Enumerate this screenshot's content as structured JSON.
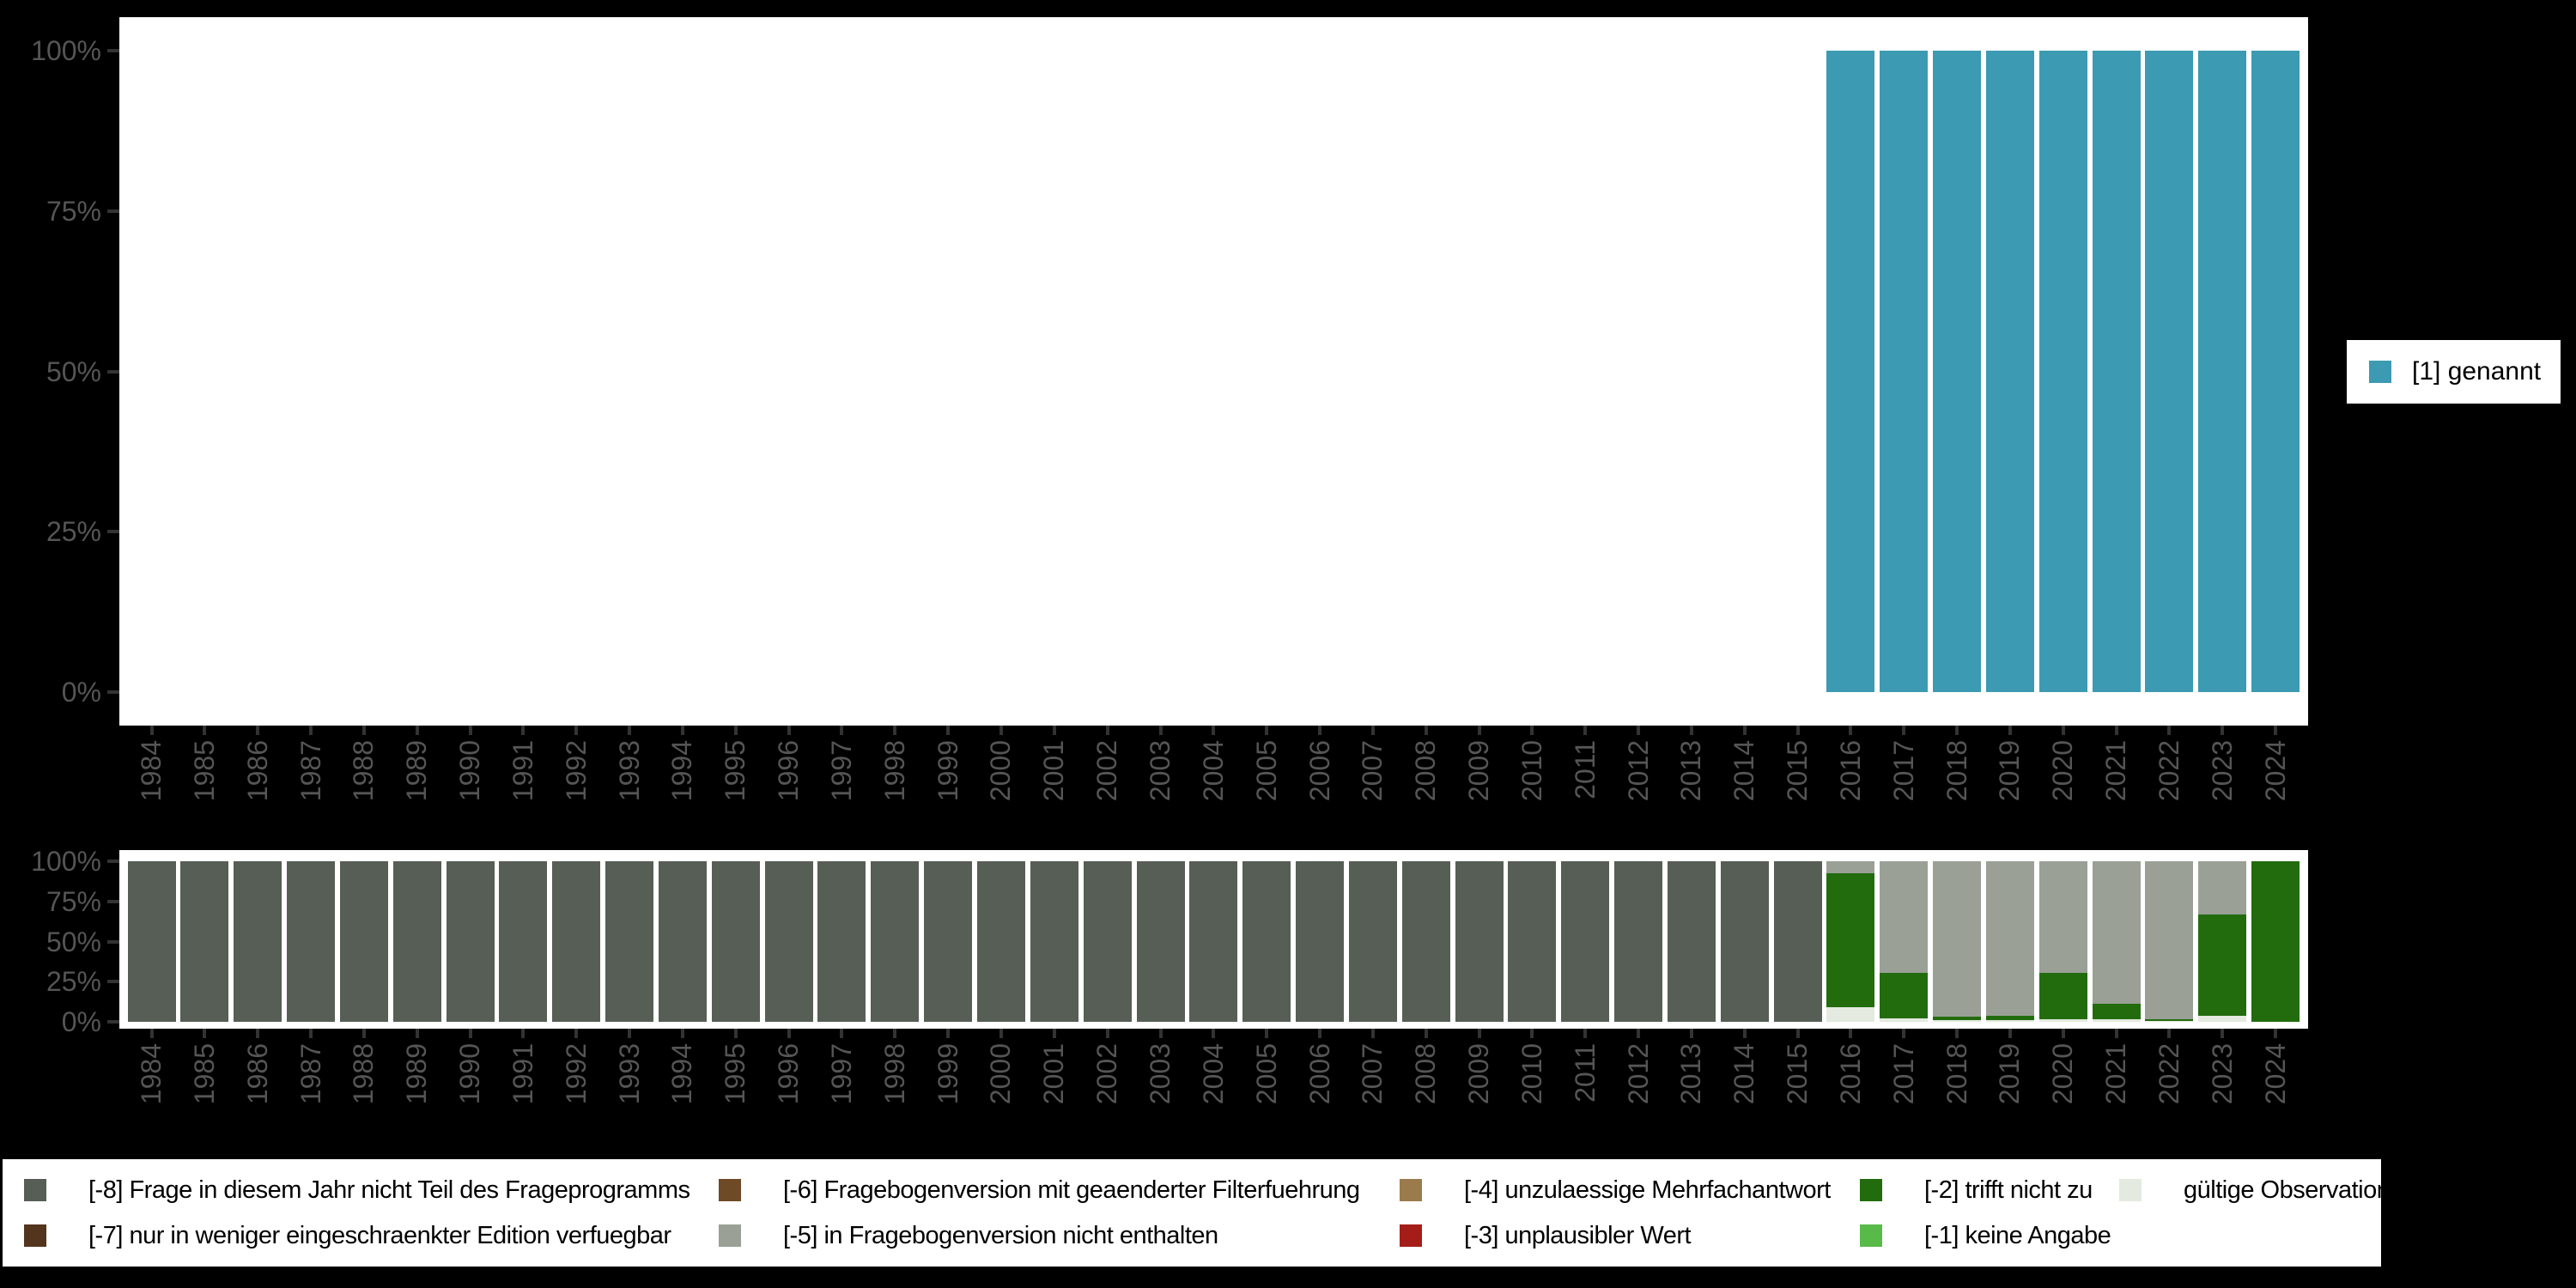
{
  "colors": {
    "page_bg": "#000000",
    "plot_bg": "#ffffff",
    "axis_text": "#555555",
    "axis_tick": "#333333",
    "legend_text": "#000000",
    "genannt": "#3c9ab2",
    "m1": "#58bb49",
    "m2": "#226c0e",
    "m3": "#a51d19",
    "m4": "#9b7b4c",
    "m5": "#9aa096",
    "m6": "#6e4a26",
    "m7": "#53341d",
    "m8": "#565e56",
    "valid": "#e4eadf"
  },
  "legend_right": {
    "label": "[1] genannt",
    "color_key": "genannt"
  },
  "legend_bottom": {
    "items": [
      {
        "key": "m8",
        "label": "[-8] Frage in diesem Jahr nicht Teil des Frageprogramms",
        "col": 0,
        "row": 0
      },
      {
        "key": "m7",
        "label": "[-7] nur in weniger eingeschraenkter Edition verfuegbar",
        "col": 0,
        "row": 1
      },
      {
        "key": "m6",
        "label": "[-6] Fragebogenversion mit geaenderter Filterfuehrung",
        "col": 1,
        "row": 0
      },
      {
        "key": "m5",
        "label": "[-5] in Fragebogenversion nicht enthalten",
        "col": 1,
        "row": 1
      },
      {
        "key": "m4",
        "label": "[-4] unzulaessige Mehrfachantwort",
        "col": 2,
        "row": 0
      },
      {
        "key": "m3",
        "label": "[-3] unplausibler Wert",
        "col": 2,
        "row": 1
      },
      {
        "key": "m2",
        "label": "[-2] trifft nicht zu",
        "col": 3,
        "row": 0
      },
      {
        "key": "m1",
        "label": "[-1] keine Angabe",
        "col": 3,
        "row": 1
      },
      {
        "key": "valid",
        "label": "gültige Observationen",
        "col": 4,
        "row": 0
      }
    ]
  },
  "chart_data": [
    {
      "id": "top",
      "type": "bar",
      "stacked": true,
      "title": "",
      "xlabel": "",
      "ylabel": "",
      "ylim": [
        0,
        100
      ],
      "yticks": [
        "0%",
        "25%",
        "50%",
        "75%",
        "100%"
      ],
      "legend_position": "right",
      "grid": false,
      "categories": [
        "1984",
        "1985",
        "1986",
        "1987",
        "1988",
        "1989",
        "1990",
        "1991",
        "1992",
        "1993",
        "1994",
        "1995",
        "1996",
        "1997",
        "1998",
        "1999",
        "2000",
        "2001",
        "2002",
        "2003",
        "2004",
        "2005",
        "2006",
        "2007",
        "2008",
        "2009",
        "2010",
        "2011",
        "2012",
        "2013",
        "2014",
        "2015",
        "2016",
        "2017",
        "2018",
        "2019",
        "2020",
        "2021",
        "2022",
        "2023",
        "2024"
      ],
      "series_note": "percent of valid answers; [1] genannt only",
      "bars": {
        "2016": {
          "genannt": 100
        },
        "2017": {
          "genannt": 100
        },
        "2018": {
          "genannt": 100
        },
        "2019": {
          "genannt": 100
        },
        "2020": {
          "genannt": 100
        },
        "2021": {
          "genannt": 100
        },
        "2022": {
          "genannt": 100
        },
        "2023": {
          "genannt": 100
        },
        "2024": {
          "genannt": 100
        }
      }
    },
    {
      "id": "bottom",
      "type": "bar",
      "stacked": true,
      "title": "",
      "xlabel": "",
      "ylabel": "",
      "ylim": [
        0,
        100
      ],
      "yticks": [
        "0%",
        "25%",
        "50%",
        "75%",
        "100%"
      ],
      "legend_position": "bottom",
      "grid": false,
      "categories": [
        "1984",
        "1985",
        "1986",
        "1987",
        "1988",
        "1989",
        "1990",
        "1991",
        "1992",
        "1993",
        "1994",
        "1995",
        "1996",
        "1997",
        "1998",
        "1999",
        "2000",
        "2001",
        "2002",
        "2003",
        "2004",
        "2005",
        "2006",
        "2007",
        "2008",
        "2009",
        "2010",
        "2011",
        "2012",
        "2013",
        "2014",
        "2015",
        "2016",
        "2017",
        "2018",
        "2019",
        "2020",
        "2021",
        "2022",
        "2023",
        "2024"
      ],
      "series_note": "segments listed top-to-bottom of each stacked bar, values in percent",
      "bars": {
        "1984": {
          "m8": 100
        },
        "1985": {
          "m8": 100
        },
        "1986": {
          "m8": 100
        },
        "1987": {
          "m8": 100
        },
        "1988": {
          "m8": 100
        },
        "1989": {
          "m8": 100
        },
        "1990": {
          "m8": 100
        },
        "1991": {
          "m8": 100
        },
        "1992": {
          "m8": 100
        },
        "1993": {
          "m8": 100
        },
        "1994": {
          "m8": 100
        },
        "1995": {
          "m8": 100
        },
        "1996": {
          "m8": 100
        },
        "1997": {
          "m8": 100
        },
        "1998": {
          "m8": 100
        },
        "1999": {
          "m8": 100
        },
        "2000": {
          "m8": 100
        },
        "2001": {
          "m8": 100
        },
        "2002": {
          "m8": 100
        },
        "2003": {
          "m8": 100
        },
        "2004": {
          "m8": 100
        },
        "2005": {
          "m8": 100
        },
        "2006": {
          "m8": 100
        },
        "2007": {
          "m8": 100
        },
        "2008": {
          "m8": 100
        },
        "2009": {
          "m8": 100
        },
        "2010": {
          "m8": 100
        },
        "2011": {
          "m8": 100
        },
        "2012": {
          "m8": 100
        },
        "2013": {
          "m8": 100
        },
        "2014": {
          "m8": 100
        },
        "2015": {
          "m8": 100
        },
        "2016": {
          "m5": 7.5,
          "m2": 83.5,
          "valid": 9
        },
        "2017": {
          "m5": 69.5,
          "m2": 28.5,
          "valid": 2
        },
        "2018": {
          "m5": 97,
          "m2": 2,
          "valid": 1
        },
        "2019": {
          "m5": 96,
          "m2": 3,
          "valid": 1
        },
        "2020": {
          "m5": 69.5,
          "m2": 29,
          "valid": 1.5
        },
        "2021": {
          "m5": 89,
          "m2": 9.5,
          "valid": 1.5
        },
        "2022": {
          "m5": 98.5,
          "m2": 1,
          "valid": 0.5
        },
        "2023": {
          "m5": 33,
          "m2": 63,
          "valid": 4
        },
        "2024": {
          "m2": 100
        }
      }
    }
  ]
}
